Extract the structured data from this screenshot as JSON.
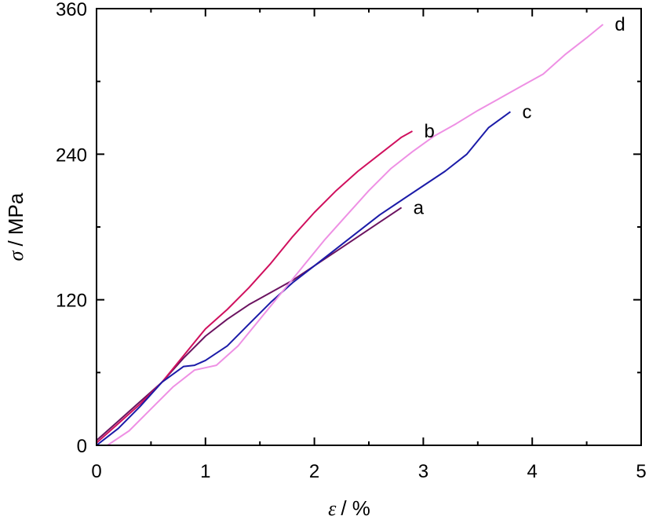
{
  "chart_data": {
    "type": "line",
    "title": "",
    "xlabel": {
      "symbol": "ε",
      "unit": "/ %"
    },
    "ylabel": {
      "symbol": "σ",
      "unit": "/ MPa"
    },
    "xlim": [
      0,
      5
    ],
    "ylim": [
      0,
      360
    ],
    "x_ticks": [
      "0",
      "1",
      "2",
      "3",
      "4",
      "5"
    ],
    "y_ticks": [
      "0",
      "120",
      "240",
      "360"
    ],
    "grid": false,
    "series": [
      {
        "name": "a",
        "color": "#6b1360",
        "points": [
          [
            0,
            4
          ],
          [
            0.2,
            20
          ],
          [
            0.4,
            36
          ],
          [
            0.6,
            52
          ],
          [
            0.8,
            72
          ],
          [
            1.0,
            90
          ],
          [
            1.2,
            104
          ],
          [
            1.4,
            116
          ],
          [
            1.6,
            126
          ],
          [
            1.8,
            136
          ],
          [
            2.0,
            148
          ],
          [
            2.2,
            160
          ],
          [
            2.4,
            172
          ],
          [
            2.6,
            184
          ],
          [
            2.8,
            196
          ]
        ]
      },
      {
        "name": "b",
        "color": "#d0105e",
        "points": [
          [
            0,
            2
          ],
          [
            0.2,
            18
          ],
          [
            0.4,
            34
          ],
          [
            0.6,
            52
          ],
          [
            0.8,
            74
          ],
          [
            1.0,
            96
          ],
          [
            1.2,
            112
          ],
          [
            1.4,
            130
          ],
          [
            1.6,
            150
          ],
          [
            1.8,
            172
          ],
          [
            2.0,
            192
          ],
          [
            2.2,
            210
          ],
          [
            2.4,
            226
          ],
          [
            2.6,
            240
          ],
          [
            2.8,
            254
          ],
          [
            2.9,
            259
          ]
        ]
      },
      {
        "name": "c",
        "color": "#1b1ba8",
        "points": [
          [
            0,
            0
          ],
          [
            0.2,
            14
          ],
          [
            0.4,
            32
          ],
          [
            0.6,
            52
          ],
          [
            0.8,
            65
          ],
          [
            0.9,
            66
          ],
          [
            1.0,
            70
          ],
          [
            1.2,
            82
          ],
          [
            1.4,
            100
          ],
          [
            1.6,
            118
          ],
          [
            1.8,
            134
          ],
          [
            2.0,
            148
          ],
          [
            2.2,
            162
          ],
          [
            2.4,
            176
          ],
          [
            2.6,
            190
          ],
          [
            2.8,
            202
          ],
          [
            3.0,
            214
          ],
          [
            3.2,
            226
          ],
          [
            3.4,
            240
          ],
          [
            3.6,
            262
          ],
          [
            3.8,
            275
          ]
        ]
      },
      {
        "name": "d",
        "color": "#ee90e4",
        "points": [
          [
            0,
            0
          ],
          [
            0.1,
            0
          ],
          [
            0.3,
            12
          ],
          [
            0.5,
            30
          ],
          [
            0.7,
            48
          ],
          [
            0.9,
            62
          ],
          [
            1.0,
            64
          ],
          [
            1.1,
            66
          ],
          [
            1.3,
            82
          ],
          [
            1.5,
            104
          ],
          [
            1.7,
            126
          ],
          [
            1.9,
            148
          ],
          [
            2.1,
            170
          ],
          [
            2.3,
            190
          ],
          [
            2.5,
            210
          ],
          [
            2.7,
            228
          ],
          [
            2.9,
            242
          ],
          [
            3.1,
            255
          ],
          [
            3.3,
            265
          ],
          [
            3.5,
            276
          ],
          [
            3.7,
            286
          ],
          [
            3.9,
            296
          ],
          [
            4.1,
            306
          ],
          [
            4.3,
            322
          ],
          [
            4.5,
            336
          ],
          [
            4.65,
            347
          ]
        ]
      }
    ]
  }
}
